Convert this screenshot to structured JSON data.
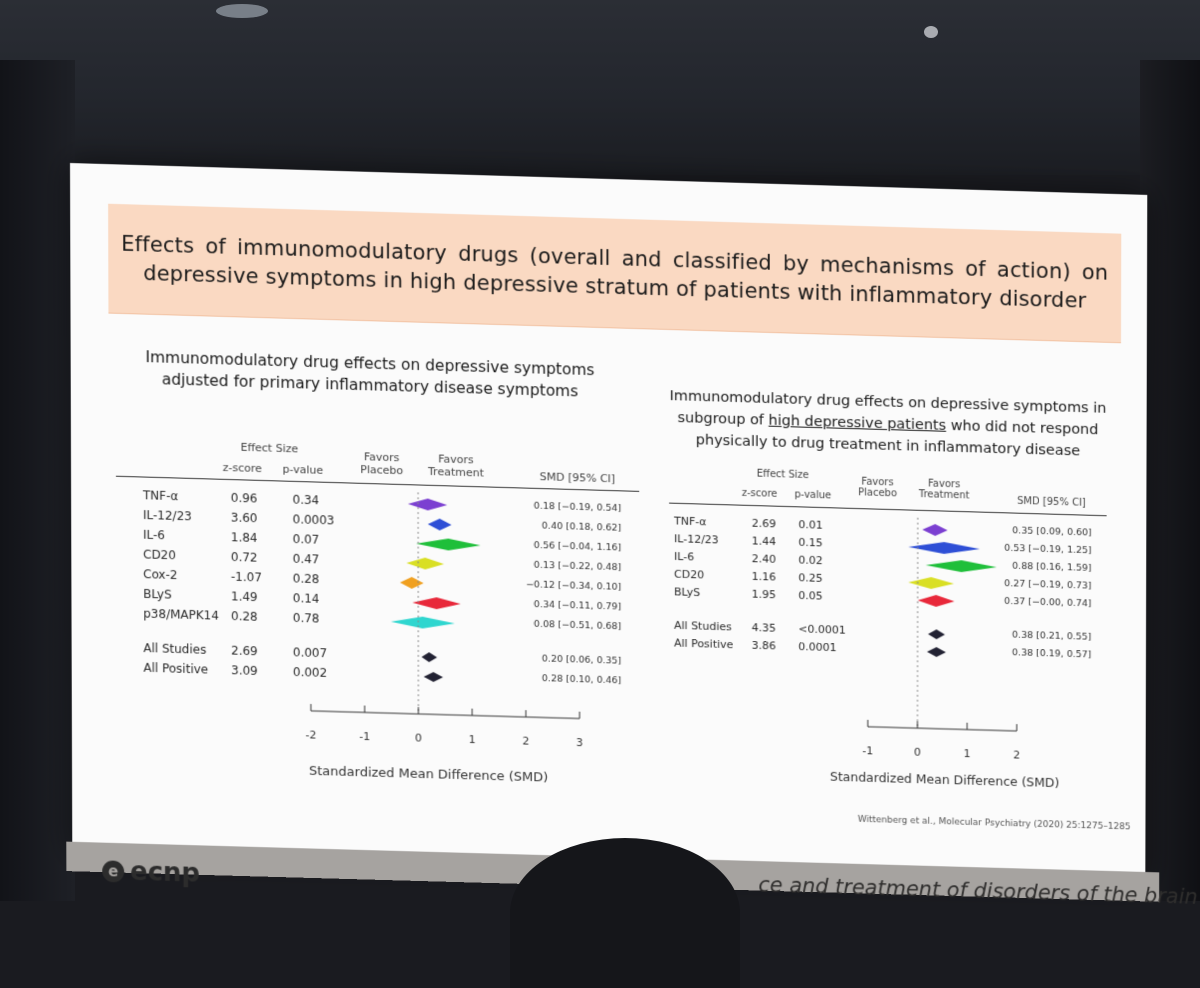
{
  "slide_title": "Effects of immunomodulatory drugs (overall and classified by mechanisms of action) on depressive symptoms in high depressive stratum of patients with inflammatory disorder",
  "left_plot": {
    "title_line1": "Immunomodulatory drug effects on depressive symptoms",
    "title_line2": "adjusted for primary inflammatory disease symptoms",
    "header": {
      "effect_size": "Effect Size",
      "z": "z-score",
      "p": "p-value",
      "favors": "Favors",
      "placebo": "Placebo",
      "treatment": "Treatment",
      "smd": "SMD [95% CI]"
    },
    "rows": [
      {
        "label": "TNF-α",
        "z": "0.96",
        "p": "0.34",
        "smd": 0.18,
        "lo": -0.19,
        "hi": 0.54,
        "ci": "0.18 [−0.19, 0.54]",
        "color": "#7b3fd1"
      },
      {
        "label": "IL-12/23",
        "z": "3.60",
        "p": "0.0003",
        "smd": 0.4,
        "lo": 0.18,
        "hi": 0.62,
        "ci": "0.40 [0.18, 0.62]",
        "color": "#2e4fd6"
      },
      {
        "label": "IL-6",
        "z": "1.84",
        "p": "0.07",
        "smd": 0.56,
        "lo": -0.04,
        "hi": 1.16,
        "ci": "0.56 [−0.04, 1.16]",
        "color": "#1fbf3a"
      },
      {
        "label": "CD20",
        "z": "0.72",
        "p": "0.47",
        "smd": 0.13,
        "lo": -0.22,
        "hi": 0.48,
        "ci": "0.13 [−0.22, 0.48]",
        "color": "#d9df24"
      },
      {
        "label": "Cox-2",
        "z": "-1.07",
        "p": "0.28",
        "smd": -0.12,
        "lo": -0.34,
        "hi": 0.1,
        "ci": "−0.12 [−0.34, 0.10]",
        "color": "#f0a020"
      },
      {
        "label": "BLyS",
        "z": "1.49",
        "p": "0.14",
        "smd": 0.34,
        "lo": -0.11,
        "hi": 0.79,
        "ci": "0.34 [−0.11, 0.79]",
        "color": "#e8283a"
      },
      {
        "label": "p38/MAPK14",
        "z": "0.28",
        "p": "0.78",
        "smd": 0.08,
        "lo": -0.51,
        "hi": 0.68,
        "ci": "0.08 [−0.51, 0.68]",
        "color": "#2fd6cf"
      }
    ],
    "summary": [
      {
        "label": "All Studies",
        "z": "2.69",
        "p": "0.007",
        "smd": 0.2,
        "lo": 0.06,
        "hi": 0.35,
        "ci": "0.20 [0.06, 0.35]",
        "color": "#222233"
      },
      {
        "label": "All Positive",
        "z": "3.09",
        "p": "0.002",
        "smd": 0.28,
        "lo": 0.1,
        "hi": 0.46,
        "ci": "0.28 [0.10, 0.46]",
        "color": "#222233"
      }
    ],
    "axis_ticks": [
      "-2",
      "-1",
      "0",
      "1",
      "2",
      "3"
    ],
    "axis_min": -2,
    "axis_max": 3,
    "axis_label": "Standardized Mean Difference (SMD)"
  },
  "right_plot": {
    "title_line1": "Immunomodulatory drug effects on depressive symptoms in",
    "title_line2a": "subgroup of ",
    "title_line2b": "high depressive patients",
    "title_line2c": " who did not respond",
    "title_line3": "physically to drug treatment in inflammatory disease",
    "header": {
      "effect_size": "Effect Size",
      "z": "z-score",
      "p": "p-value",
      "favors": "Favors",
      "placebo": "Placebo",
      "treatment": "Treatment",
      "smd": "SMD [95% CI]"
    },
    "rows": [
      {
        "label": "TNF-α",
        "z": "2.69",
        "p": "0.01",
        "smd": 0.35,
        "lo": 0.09,
        "hi": 0.6,
        "ci": "0.35 [0.09, 0.60]",
        "color": "#7b3fd1"
      },
      {
        "label": "IL-12/23",
        "z": "1.44",
        "p": "0.15",
        "smd": 0.53,
        "lo": -0.19,
        "hi": 1.25,
        "ci": "0.53 [−0.19, 1.25]",
        "color": "#2e4fd6"
      },
      {
        "label": "IL-6",
        "z": "2.40",
        "p": "0.02",
        "smd": 0.88,
        "lo": 0.16,
        "hi": 1.59,
        "ci": "0.88 [0.16, 1.59]",
        "color": "#1fbf3a"
      },
      {
        "label": "CD20",
        "z": "1.16",
        "p": "0.25",
        "smd": 0.27,
        "lo": -0.19,
        "hi": 0.73,
        "ci": "0.27 [−0.19, 0.73]",
        "color": "#d9df24"
      },
      {
        "label": "BLyS",
        "z": "1.95",
        "p": "0.05",
        "smd": 0.37,
        "lo": -0.0,
        "hi": 0.74,
        "ci": "0.37 [−0.00, 0.74]",
        "color": "#e8283a"
      }
    ],
    "summary": [
      {
        "label": "All Studies",
        "z": "4.35",
        "p": "<0.0001",
        "smd": 0.38,
        "lo": 0.21,
        "hi": 0.55,
        "ci": "0.38 [0.21, 0.55]",
        "color": "#222233"
      },
      {
        "label": "All Positive",
        "z": "3.86",
        "p": "0.0001",
        "smd": 0.38,
        "lo": 0.19,
        "hi": 0.57,
        "ci": "0.38 [0.19, 0.57]",
        "color": "#222233"
      }
    ],
    "axis_ticks": [
      "-1",
      "0",
      "1",
      "2"
    ],
    "axis_min": -1,
    "axis_max": 2,
    "axis_label": "Standardized Mean Difference (SMD)"
  },
  "citation": "Wittenberg et al., Molecular Psychiatry (2020) 25:1275–1285",
  "footer": {
    "logo": "ecnp",
    "logo_mark": "e",
    "tagline": "ce and treatment of disorders of the brain"
  }
}
